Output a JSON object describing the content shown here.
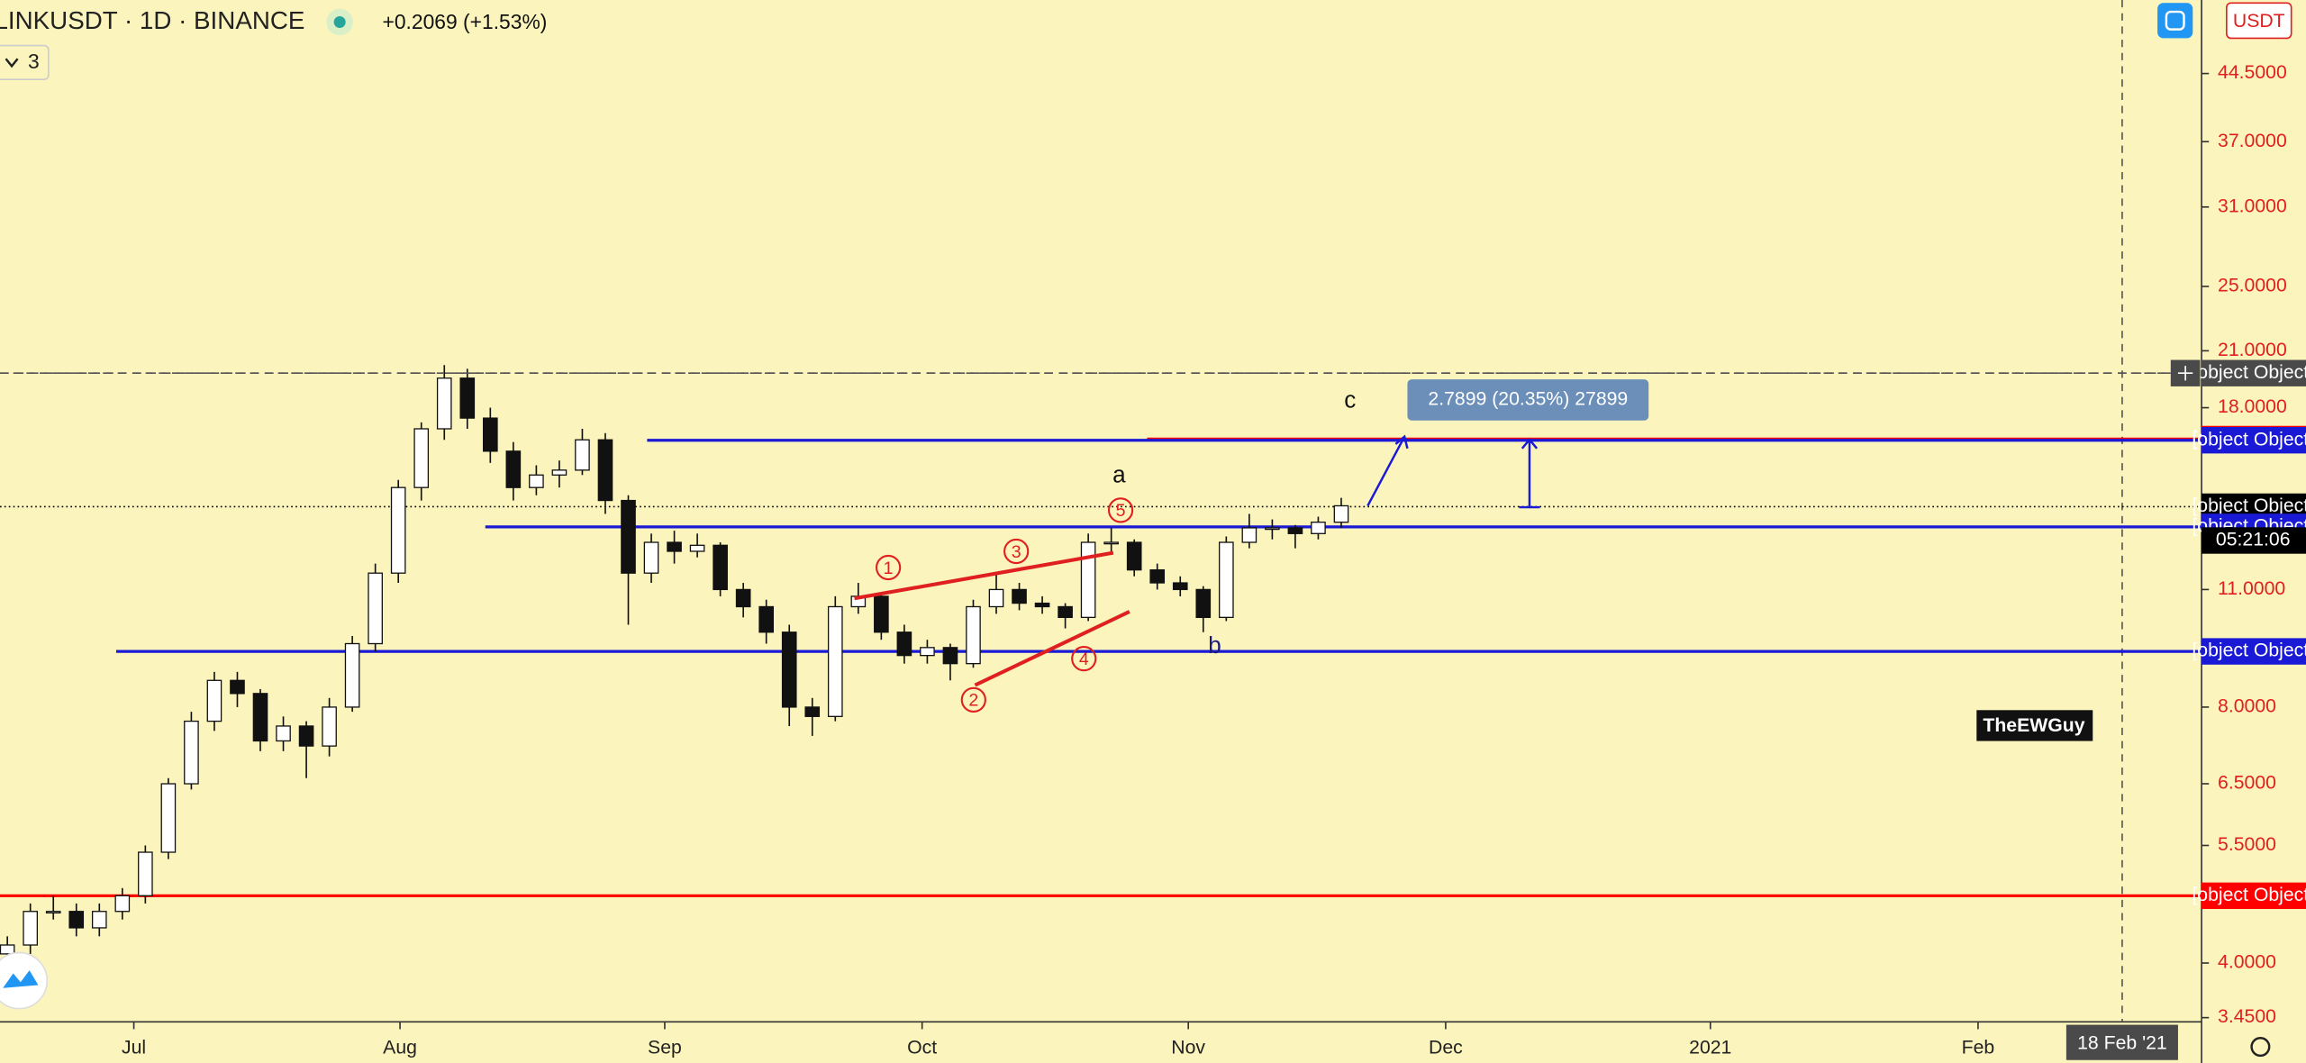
{
  "header": {
    "symbol": "LINKUSDT · 1D · BINANCE",
    "change": "+0.2069 (+1.53%)",
    "indicator_count": "3",
    "currency": "USDT"
  },
  "price_axis": {
    "ticks": [
      {
        "value": 44.5,
        "label": "44.5000"
      },
      {
        "value": 37,
        "label": "37.0000"
      },
      {
        "value": 31,
        "label": "31.0000"
      },
      {
        "value": 25,
        "label": "25.0000"
      },
      {
        "value": 21,
        "label": "21.0000"
      },
      {
        "value": 18,
        "label": "18.0000"
      },
      {
        "value": 11,
        "label": "11.0000"
      },
      {
        "value": 8,
        "label": "8.0000"
      },
      {
        "value": 6.5,
        "label": "6.5000"
      },
      {
        "value": 5.5,
        "label": "5.5000"
      },
      {
        "value": 4,
        "label": "4.0000"
      },
      {
        "value": 3.45,
        "label": "3.4500"
      }
    ]
  },
  "time_axis": {
    "labels": [
      "Jul",
      "Aug",
      "Sep",
      "Oct",
      "Nov",
      "Dec",
      "2021",
      "Feb"
    ],
    "crosshair_date": "18 Feb '21"
  },
  "levels": [
    {
      "value": 19.7649,
      "color": "#555555",
      "style": "dashed"
    },
    {
      "value": 16.5322,
      "color": "#ff0000",
      "style": "solid"
    },
    {
      "value": 16.4812,
      "color": "#1a1ad6",
      "style": "solid"
    },
    {
      "value": 13.7667,
      "color": "#000000",
      "style": "dotted"
    },
    {
      "value": 13.0349,
      "color": "#1a1ad6",
      "style": "solid"
    },
    {
      "value": 9.3028,
      "color": "#1a1ad6",
      "style": "solid"
    },
    {
      "value": 4.7995,
      "color": "#ff0000",
      "style": "solid"
    }
  ],
  "countdown": "05:21:06",
  "annotations": {
    "waves": [
      "1",
      "2",
      "3",
      "4",
      "5"
    ],
    "abc": [
      "a",
      "b",
      "c"
    ],
    "author": "TheEWGuy",
    "measure": "2.7899 (20.35%) 27899"
  },
  "candles": [
    [
      4.1,
      4.3,
      4.0,
      4.2
    ],
    [
      4.2,
      4.7,
      4.1,
      4.6
    ],
    [
      4.6,
      4.8,
      4.5,
      4.6
    ],
    [
      4.6,
      4.7,
      4.3,
      4.4
    ],
    [
      4.4,
      4.7,
      4.3,
      4.6
    ],
    [
      4.6,
      4.9,
      4.5,
      4.8
    ],
    [
      4.8,
      5.5,
      4.7,
      5.4
    ],
    [
      5.4,
      6.6,
      5.3,
      6.5
    ],
    [
      6.5,
      7.9,
      6.4,
      7.7
    ],
    [
      7.7,
      8.8,
      7.5,
      8.6
    ],
    [
      8.6,
      8.8,
      8.0,
      8.3
    ],
    [
      8.3,
      8.4,
      7.1,
      7.3
    ],
    [
      7.3,
      7.8,
      7.1,
      7.6
    ],
    [
      7.6,
      7.7,
      6.6,
      7.2
    ],
    [
      7.2,
      8.2,
      7.0,
      8.0
    ],
    [
      8.0,
      9.7,
      7.9,
      9.5
    ],
    [
      9.5,
      11.8,
      9.3,
      11.5
    ],
    [
      11.5,
      14.8,
      11.2,
      14.5
    ],
    [
      14.5,
      17.3,
      14.0,
      17.0
    ],
    [
      17.0,
      20.2,
      16.5,
      19.5
    ],
    [
      19.5,
      20.0,
      17.0,
      17.5
    ],
    [
      17.5,
      18.0,
      15.5,
      16.0
    ],
    [
      16.0,
      16.4,
      14.0,
      14.5
    ],
    [
      14.5,
      15.4,
      14.2,
      15.0
    ],
    [
      15.0,
      15.6,
      14.5,
      15.2
    ],
    [
      15.2,
      17.0,
      15.0,
      16.5
    ],
    [
      16.5,
      16.8,
      13.5,
      14.0
    ],
    [
      14.0,
      14.2,
      10.0,
      11.5
    ],
    [
      11.5,
      12.8,
      11.2,
      12.5
    ],
    [
      12.5,
      12.9,
      11.8,
      12.2
    ],
    [
      12.2,
      12.8,
      12.0,
      12.4
    ],
    [
      12.4,
      12.5,
      10.8,
      11.0
    ],
    [
      11.0,
      11.2,
      10.2,
      10.5
    ],
    [
      10.5,
      10.7,
      9.5,
      9.8
    ],
    [
      9.8,
      10.0,
      7.6,
      8.0
    ],
    [
      8.0,
      8.2,
      7.4,
      7.8
    ],
    [
      7.8,
      10.8,
      7.7,
      10.5
    ],
    [
      10.5,
      11.2,
      10.3,
      10.8
    ],
    [
      10.8,
      10.9,
      9.6,
      9.8
    ],
    [
      9.8,
      10.0,
      9.0,
      9.2
    ],
    [
      9.2,
      9.6,
      9.0,
      9.4
    ],
    [
      9.4,
      9.5,
      8.6,
      9.0
    ],
    [
      9.0,
      10.7,
      8.9,
      10.5
    ],
    [
      10.5,
      11.5,
      10.3,
      11.0
    ],
    [
      11.0,
      11.2,
      10.4,
      10.6
    ],
    [
      10.6,
      10.8,
      10.3,
      10.5
    ],
    [
      10.5,
      10.6,
      9.9,
      10.2
    ],
    [
      10.2,
      12.8,
      10.1,
      12.5
    ],
    [
      12.5,
      13.0,
      12.1,
      12.5
    ],
    [
      12.5,
      12.6,
      11.4,
      11.6
    ],
    [
      11.6,
      11.8,
      11.0,
      11.2
    ],
    [
      11.2,
      11.4,
      10.8,
      11.0
    ],
    [
      11.0,
      11.1,
      9.8,
      10.2
    ],
    [
      10.2,
      12.7,
      10.1,
      12.5
    ],
    [
      12.5,
      13.5,
      12.3,
      13.0
    ],
    [
      13.0,
      13.3,
      12.6,
      13.0
    ],
    [
      13.0,
      13.1,
      12.3,
      12.8
    ],
    [
      12.8,
      13.4,
      12.6,
      13.2
    ],
    [
      13.2,
      14.1,
      13.0,
      13.8
    ]
  ]
}
